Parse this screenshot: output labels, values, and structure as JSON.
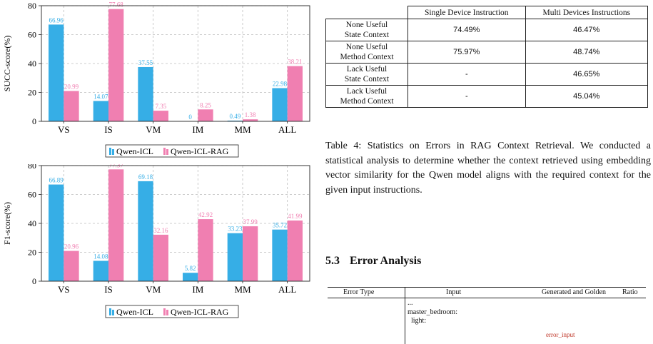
{
  "chart_data": [
    {
      "type": "bar",
      "categories": [
        "VS",
        "IS",
        "VM",
        "IM",
        "MM",
        "ALL"
      ],
      "ylabel": "SUCC-score(%)",
      "ylim": [
        0,
        80
      ],
      "yticks": [
        0,
        20,
        40,
        60,
        80
      ],
      "grid": true,
      "legend": "bottom",
      "series": [
        {
          "name": "Qwen-ICL",
          "color": "#36aee6",
          "values": [
            66.96,
            14.07,
            37.55,
            0,
            0.49,
            22.98
          ],
          "labels": [
            "66.96",
            "14.07",
            "37.55",
            "0",
            "0.49",
            "22.98"
          ]
        },
        {
          "name": "Qwen-ICL-RAG",
          "color": "#f07fb1",
          "values": [
            20.99,
            77.68,
            7.35,
            8.25,
            1.38,
            38.21
          ],
          "labels": [
            "20.99",
            "77.68",
            "7.35",
            "8.25",
            "1.38",
            "38.21"
          ]
        }
      ]
    },
    {
      "type": "bar",
      "categories": [
        "VS",
        "IS",
        "VM",
        "IM",
        "MM",
        "ALL"
      ],
      "ylabel": "F1-score(%)",
      "ylim": [
        0,
        80
      ],
      "yticks": [
        0,
        20,
        40,
        60,
        80
      ],
      "grid": true,
      "legend": "bottom",
      "series": [
        {
          "name": "Qwen-ICL",
          "color": "#36aee6",
          "values": [
            66.89,
            14.08,
            69.18,
            5.82,
            33.23,
            35.72
          ],
          "labels": [
            "66.89",
            "14.08",
            "69.18",
            "5.82",
            "33.23",
            "35.72"
          ]
        },
        {
          "name": "Qwen-ICL-RAG",
          "color": "#f07fb1",
          "values": [
            20.96,
            77.37,
            32.16,
            42.92,
            37.99,
            41.99
          ],
          "labels": [
            "20.96",
            "77.37",
            "32.16",
            "42.92",
            "37.99",
            "41.99"
          ]
        }
      ]
    }
  ],
  "stats_table": {
    "columns": [
      "Single Device Instruction",
      "Multi Devices Instructions"
    ],
    "rows": [
      {
        "label_line1": "None Useful",
        "label_line2": "State Context",
        "single": "74.49%",
        "multi": "46.47%"
      },
      {
        "label_line1": "None Useful",
        "label_line2": "Method Context",
        "single": "75.97%",
        "multi": "48.74%"
      },
      {
        "label_line1": "Lack Useful",
        "label_line2": "State Context",
        "single": "-",
        "multi": "46.65%"
      },
      {
        "label_line1": "Lack Useful",
        "label_line2": "Method Context",
        "single": "-",
        "multi": "45.04%"
      }
    ]
  },
  "caption": "Table 4: Statistics on Errors in RAG Context Retrieval. We conducted a statistical analysis to determine whether the context retrieved using embedding vector similarity for the Qwen model aligns with the required context for the given input instructions.",
  "section": {
    "number": "5.3",
    "title": "Error Analysis"
  },
  "error_table": {
    "headers": [
      "Error Type",
      "Input",
      "Generated and Golden",
      "Ratio"
    ],
    "input_lines": [
      "...",
      "master_bedroom:",
      "  light:"
    ],
    "highlight": "error_input"
  }
}
